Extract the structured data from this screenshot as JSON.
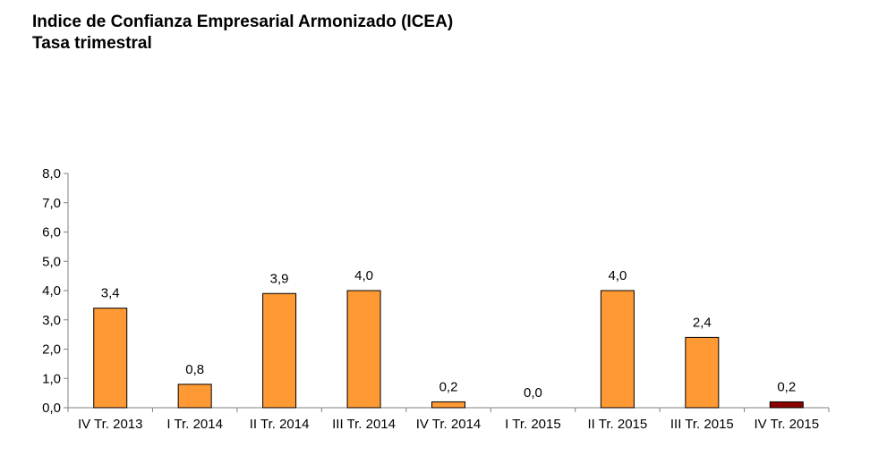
{
  "chart_data": {
    "type": "bar",
    "title": "Indice de Confianza Empresarial Armonizado (ICEA)",
    "subtitle": "Tasa trimestral",
    "categories": [
      "IV Tr. 2013",
      "I Tr. 2014",
      "II Tr. 2014",
      "III Tr. 2014",
      "IV Tr. 2014",
      "I Tr. 2015",
      "II Tr. 2015",
      "III Tr. 2015",
      "IV Tr. 2015"
    ],
    "values": [
      3.4,
      0.8,
      3.9,
      4.0,
      0.2,
      0.0,
      4.0,
      2.4,
      0.2
    ],
    "data_labels": [
      "3,4",
      "0,8",
      "3,9",
      "4,0",
      "0,2",
      "0,0",
      "4,0",
      "2,4",
      "0,2"
    ],
    "y_ticks": [
      "0,0",
      "1,0",
      "2,0",
      "3,0",
      "4,0",
      "5,0",
      "6,0",
      "7,0",
      "8,0"
    ],
    "ylim": [
      0,
      8
    ],
    "xlabel": "",
    "ylabel": "",
    "grid": false,
    "legend": "none",
    "colors": {
      "bar": "#FF9933",
      "bar_highlight": "#8B0000",
      "bar_border": "#000000",
      "axis": "#808080"
    },
    "highlight_index": 8
  }
}
